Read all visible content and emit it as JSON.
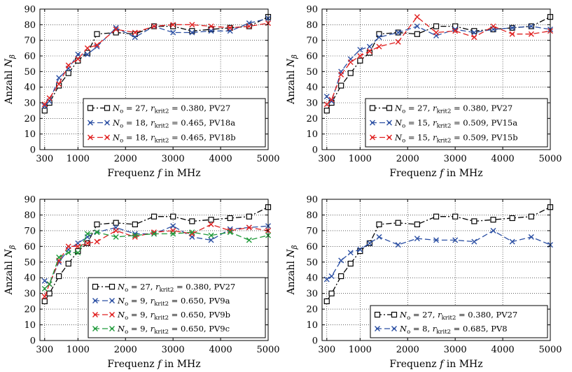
{
  "figure": {
    "colors": {
      "PV27": "#000000",
      "a": "#2b4fa3",
      "b": "#e02020",
      "c": "#1f9a3a"
    },
    "xlabel_main": "Frequenz ",
    "xlabel_var": "f",
    "xlabel_unit": " in MHz",
    "ylabel_main": "Anzahl ",
    "ylabel_var": "N",
    "ylabel_sub": "β"
  },
  "chart_data": [
    {
      "type": "line",
      "xlim": [
        200,
        5000
      ],
      "ylim": [
        0,
        90
      ],
      "xticks": [
        300,
        1000,
        2000,
        3000,
        4000,
        5000
      ],
      "yticks": [
        0,
        10,
        20,
        30,
        40,
        50,
        60,
        70,
        80,
        90
      ],
      "grid": true,
      "legend_position": "lower-right",
      "series": [
        {
          "name": "N_o = 27, r_krit2 = 0.380, PV27",
          "legend": {
            "N": "27",
            "r": "0.380",
            "pv": "PV27"
          },
          "color": "#000000",
          "marker": "square",
          "dash": "8,3,2,3",
          "x": [
            300,
            400,
            600,
            800,
            1000,
            1200,
            1400,
            1800,
            2200,
            2600,
            3000,
            3400,
            3800,
            4200,
            4600,
            5000
          ],
          "y": [
            25,
            30,
            41,
            49,
            57,
            62,
            74,
            75,
            74,
            79,
            79,
            76,
            77,
            78,
            79,
            85
          ]
        },
        {
          "name": "N_o = 18, r_krit2 = 0.465, PV18a",
          "legend": {
            "N": "18",
            "r": "0.465",
            "pv": "PV18a"
          },
          "color": "#2b4fa3",
          "marker": "x",
          "dash": "8,4",
          "x": [
            300,
            400,
            600,
            800,
            1000,
            1200,
            1400,
            1800,
            2200,
            2600,
            3000,
            3400,
            3800,
            4200,
            4600,
            5000
          ],
          "y": [
            28,
            31,
            46,
            52,
            61,
            61,
            66,
            78,
            72,
            79,
            75,
            75,
            76,
            76,
            81,
            84
          ]
        },
        {
          "name": "N_o = 18, r_krit2 = 0.465, PV18b",
          "legend": {
            "N": "18",
            "r": "0.465",
            "pv": "PV18b"
          },
          "color": "#e02020",
          "marker": "x",
          "dash": "8,4",
          "x": [
            300,
            400,
            600,
            800,
            1000,
            1200,
            1400,
            1800,
            2200,
            2600,
            3000,
            3400,
            3800,
            4200,
            4600,
            5000
          ],
          "y": [
            29,
            33,
            42,
            54,
            58,
            65,
            67,
            77,
            75,
            79,
            80,
            80,
            79,
            78,
            79,
            81
          ]
        }
      ]
    },
    {
      "type": "line",
      "xlim": [
        200,
        5000
      ],
      "ylim": [
        0,
        90
      ],
      "xticks": [
        300,
        1000,
        2000,
        3000,
        4000,
        5000
      ],
      "yticks": [
        0,
        10,
        20,
        30,
        40,
        50,
        60,
        70,
        80,
        90
      ],
      "grid": true,
      "legend_position": "lower-right",
      "series": [
        {
          "name": "N_o = 27, r_krit2 = 0.380, PV27",
          "legend": {
            "N": "27",
            "r": "0.380",
            "pv": "PV27"
          },
          "color": "#000000",
          "marker": "square",
          "dash": "8,3,2,3",
          "x": [
            300,
            400,
            600,
            800,
            1000,
            1200,
            1400,
            1800,
            2200,
            2600,
            3000,
            3400,
            3800,
            4200,
            4600,
            5000
          ],
          "y": [
            25,
            30,
            41,
            49,
            57,
            62,
            74,
            75,
            74,
            79,
            79,
            76,
            77,
            78,
            79,
            85
          ]
        },
        {
          "name": "N_o = 15, r_krit2 = 0.509, PV15a",
          "legend": {
            "N": "15",
            "r": "0.509",
            "pv": "PV15a"
          },
          "color": "#2b4fa3",
          "marker": "x",
          "dash": "8,4",
          "x": [
            300,
            400,
            600,
            800,
            1000,
            1200,
            1400,
            1800,
            2200,
            2600,
            3000,
            3400,
            3800,
            4200,
            4600,
            5000
          ],
          "y": [
            34,
            31,
            50,
            58,
            64,
            66,
            72,
            75,
            79,
            73,
            77,
            75,
            77,
            78,
            79,
            77
          ]
        },
        {
          "name": "N_o = 15, r_krit2 = 0.509, PV15b",
          "legend": {
            "N": "15",
            "r": "0.509",
            "pv": "PV15b"
          },
          "color": "#e02020",
          "marker": "x",
          "dash": "8,4",
          "x": [
            300,
            400,
            600,
            800,
            1000,
            1200,
            1400,
            1800,
            2200,
            2600,
            3000,
            3400,
            3800,
            4200,
            4600,
            5000
          ],
          "y": [
            29,
            32,
            48,
            56,
            60,
            63,
            66,
            69,
            85,
            75,
            76,
            72,
            79,
            74,
            74,
            76
          ]
        }
      ]
    },
    {
      "type": "line",
      "xlim": [
        200,
        5000
      ],
      "ylim": [
        0,
        90
      ],
      "xticks": [
        300,
        1000,
        2000,
        3000,
        4000,
        5000
      ],
      "yticks": [
        0,
        10,
        20,
        30,
        40,
        50,
        60,
        70,
        80,
        90
      ],
      "grid": true,
      "legend_position": "lower-right",
      "series": [
        {
          "name": "N_o = 27, r_krit2 = 0.380, PV27",
          "legend": {
            "N": "27",
            "r": "0.380",
            "pv": "PV27"
          },
          "color": "#000000",
          "marker": "square",
          "dash": "8,3,2,3",
          "x": [
            300,
            400,
            600,
            800,
            1000,
            1200,
            1400,
            1800,
            2200,
            2600,
            3000,
            3400,
            3800,
            4200,
            4600,
            5000
          ],
          "y": [
            25,
            30,
            41,
            49,
            57,
            62,
            74,
            75,
            74,
            79,
            79,
            76,
            77,
            78,
            79,
            85
          ]
        },
        {
          "name": "N_o = 9, r_krit2 = 0.650, PV9a",
          "legend": {
            "N": "9",
            "r": "0.650",
            "pv": "PV9a"
          },
          "color": "#2b4fa3",
          "marker": "x",
          "dash": "8,4",
          "x": [
            300,
            400,
            600,
            800,
            1000,
            1200,
            1400,
            1800,
            2200,
            2600,
            3000,
            3400,
            3800,
            4200,
            4600,
            5000
          ],
          "y": [
            38,
            36,
            50,
            58,
            62,
            66,
            69,
            72,
            68,
            68,
            73,
            66,
            64,
            71,
            72,
            73
          ]
        },
        {
          "name": "N_o = 9, r_krit2 = 0.650, PV9b",
          "legend": {
            "N": "9",
            "r": "0.650",
            "pv": "PV9b"
          },
          "color": "#e02020",
          "marker": "x",
          "dash": "8,4",
          "x": [
            300,
            400,
            600,
            800,
            1000,
            1200,
            1400,
            1800,
            2200,
            2600,
            3000,
            3400,
            3800,
            4200,
            4600,
            5000
          ],
          "y": [
            28,
            36,
            51,
            60,
            60,
            62,
            63,
            70,
            66,
            69,
            70,
            68,
            74,
            70,
            72,
            70
          ]
        },
        {
          "name": "N_o = 9, r_krit2 = 0.650, PV9c",
          "legend": {
            "N": "9",
            "r": "0.650",
            "pv": "PV9c"
          },
          "color": "#1f9a3a",
          "marker": "x",
          "dash": "8,4",
          "x": [
            300,
            400,
            600,
            800,
            1000,
            1200,
            1400,
            1800,
            2200,
            2600,
            3000,
            3400,
            3800,
            4200,
            4600,
            5000
          ],
          "y": [
            33,
            36,
            53,
            56,
            56,
            68,
            69,
            66,
            67,
            68,
            68,
            69,
            67,
            69,
            64,
            67
          ]
        }
      ]
    },
    {
      "type": "line",
      "xlim": [
        200,
        5000
      ],
      "ylim": [
        0,
        90
      ],
      "xticks": [
        300,
        1000,
        2000,
        3000,
        4000,
        5000
      ],
      "yticks": [
        0,
        10,
        20,
        30,
        40,
        50,
        60,
        70,
        80,
        90
      ],
      "grid": true,
      "legend_position": "lower-right",
      "series": [
        {
          "name": "N_o = 27, r_krit2 = 0.380, PV27",
          "legend": {
            "N": "27",
            "r": "0.380",
            "pv": "PV27"
          },
          "color": "#000000",
          "marker": "square",
          "dash": "8,3,2,3",
          "x": [
            300,
            400,
            600,
            800,
            1000,
            1200,
            1400,
            1800,
            2200,
            2600,
            3000,
            3400,
            3800,
            4200,
            4600,
            5000
          ],
          "y": [
            25,
            30,
            41,
            49,
            57,
            62,
            74,
            75,
            74,
            79,
            79,
            76,
            77,
            78,
            79,
            85
          ]
        },
        {
          "name": "N_o = 8, r_krit2 = 0.685, PV8",
          "legend": {
            "N": "8",
            "r": "0.685",
            "pv": "PV8"
          },
          "color": "#2b4fa3",
          "marker": "x",
          "dash": "8,4",
          "x": [
            300,
            400,
            600,
            800,
            1000,
            1200,
            1400,
            1800,
            2200,
            2600,
            3000,
            3400,
            3800,
            4200,
            4600,
            5000
          ],
          "y": [
            39,
            41,
            51,
            56,
            58,
            62,
            66,
            61,
            65,
            64,
            64,
            63,
            70,
            63,
            66,
            61
          ]
        }
      ]
    }
  ]
}
